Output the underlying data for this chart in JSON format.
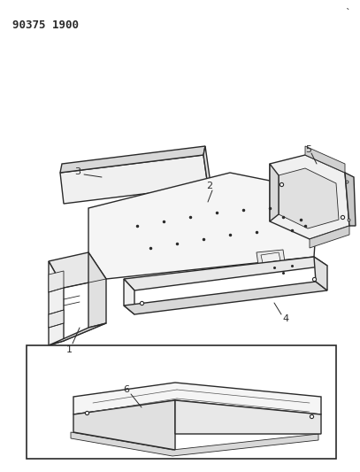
{
  "title": "90375 1900",
  "bg_color": "#ffffff",
  "line_color": "#2a2a2a",
  "fig_width": 4.07,
  "fig_height": 5.33,
  "dpi": 100
}
